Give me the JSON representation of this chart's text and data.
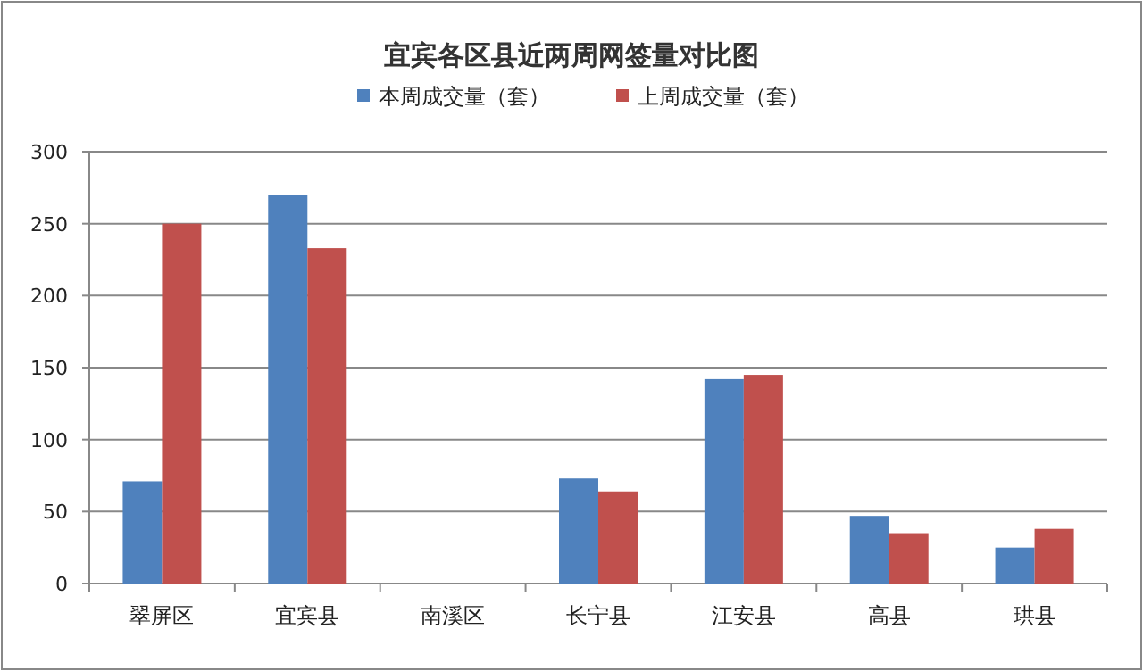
{
  "chart_data": {
    "type": "bar",
    "title": "宜宾各区县近两周网签量对比图",
    "categories": [
      "翠屏区",
      "宜宾县",
      "南溪区",
      "长宁县",
      "江安县",
      "高县",
      "珙县"
    ],
    "series": [
      {
        "name": "本周成交量（套）",
        "color": "#4f81bd",
        "values": [
          71,
          270,
          0,
          73,
          142,
          47,
          25
        ]
      },
      {
        "name": "上周成交量（套）",
        "color": "#c0504d",
        "values": [
          250,
          233,
          0,
          64,
          145,
          35,
          38
        ]
      }
    ],
    "ylim": [
      0,
      300
    ],
    "yticks": [
      0,
      50,
      100,
      150,
      200,
      250,
      300
    ],
    "grid": "y",
    "legend": "top"
  }
}
